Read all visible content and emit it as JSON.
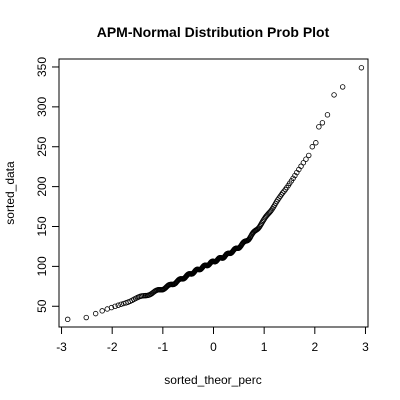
{
  "chart_data": {
    "type": "scatter",
    "title": "APM-Normal Distribution Prob Plot",
    "xlabel": "sorted_theor_perc",
    "ylabel": "sorted_data",
    "xlim": [
      -3.05,
      3.05
    ],
    "ylim": [
      24,
      360
    ],
    "x_ticks": [
      -3,
      -2,
      -1,
      0,
      1,
      2,
      3
    ],
    "y_ticks": [
      50,
      100,
      150,
      200,
      250,
      300,
      350
    ],
    "x_tick_labels": [
      "-3",
      "-2",
      "-1",
      "0",
      "1",
      "2",
      "3"
    ],
    "y_tick_labels": [
      "50",
      "100",
      "150",
      "200",
      "250",
      "300",
      "350"
    ],
    "grid": false,
    "legend": "none",
    "marker": "open-circle",
    "anchor_points": [
      [
        -2.9,
        33
      ],
      [
        -2.5,
        35
      ],
      [
        -2.2,
        43
      ],
      [
        -2.0,
        48
      ],
      [
        -1.8,
        54
      ],
      [
        -1.5,
        60
      ],
      [
        -1.2,
        67
      ],
      [
        -1.0,
        72
      ],
      [
        -0.8,
        78
      ],
      [
        -0.5,
        89
      ],
      [
        -0.3,
        96
      ],
      [
        0.0,
        106
      ],
      [
        0.2,
        112
      ],
      [
        0.5,
        124
      ],
      [
        0.7,
        135
      ],
      [
        0.9,
        150
      ],
      [
        1.0,
        158
      ],
      [
        1.1,
        168
      ],
      [
        1.3,
        185
      ],
      [
        1.5,
        205
      ],
      [
        1.7,
        222
      ],
      [
        1.9,
        240
      ]
    ],
    "tail_points": [
      [
        1.95,
        250
      ],
      [
        2.02,
        255
      ],
      [
        2.08,
        275
      ],
      [
        2.15,
        280
      ],
      [
        2.25,
        290
      ],
      [
        2.38,
        315
      ],
      [
        2.55,
        325
      ],
      [
        2.92,
        349
      ]
    ],
    "n_points": 250
  }
}
